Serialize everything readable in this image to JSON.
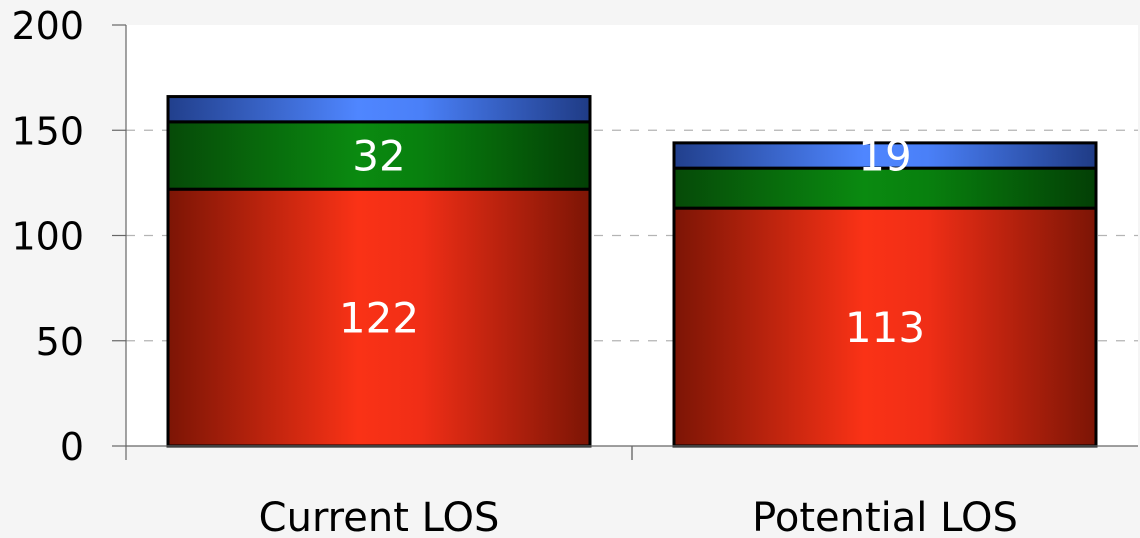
{
  "chart_data": {
    "type": "bar",
    "stacked": true,
    "categories": [
      "Current LOS",
      "Potential LOS"
    ],
    "series": [
      {
        "values": [
          122,
          113
        ],
        "labels": [
          "122",
          "113"
        ],
        "color": "#f0301a"
      },
      {
        "values": [
          32,
          19
        ],
        "labels": [
          "32",
          ""
        ],
        "color": "#0b7f10"
      },
      {
        "values": [
          12,
          12
        ],
        "labels": [
          "",
          "19"
        ],
        "color": "#3d73e8"
      }
    ],
    "ylim": [
      0,
      200
    ],
    "yticks": [
      0,
      50,
      100,
      150,
      200
    ],
    "grid": true,
    "legend": "none",
    "xlabel": "",
    "ylabel": "",
    "title": ""
  }
}
